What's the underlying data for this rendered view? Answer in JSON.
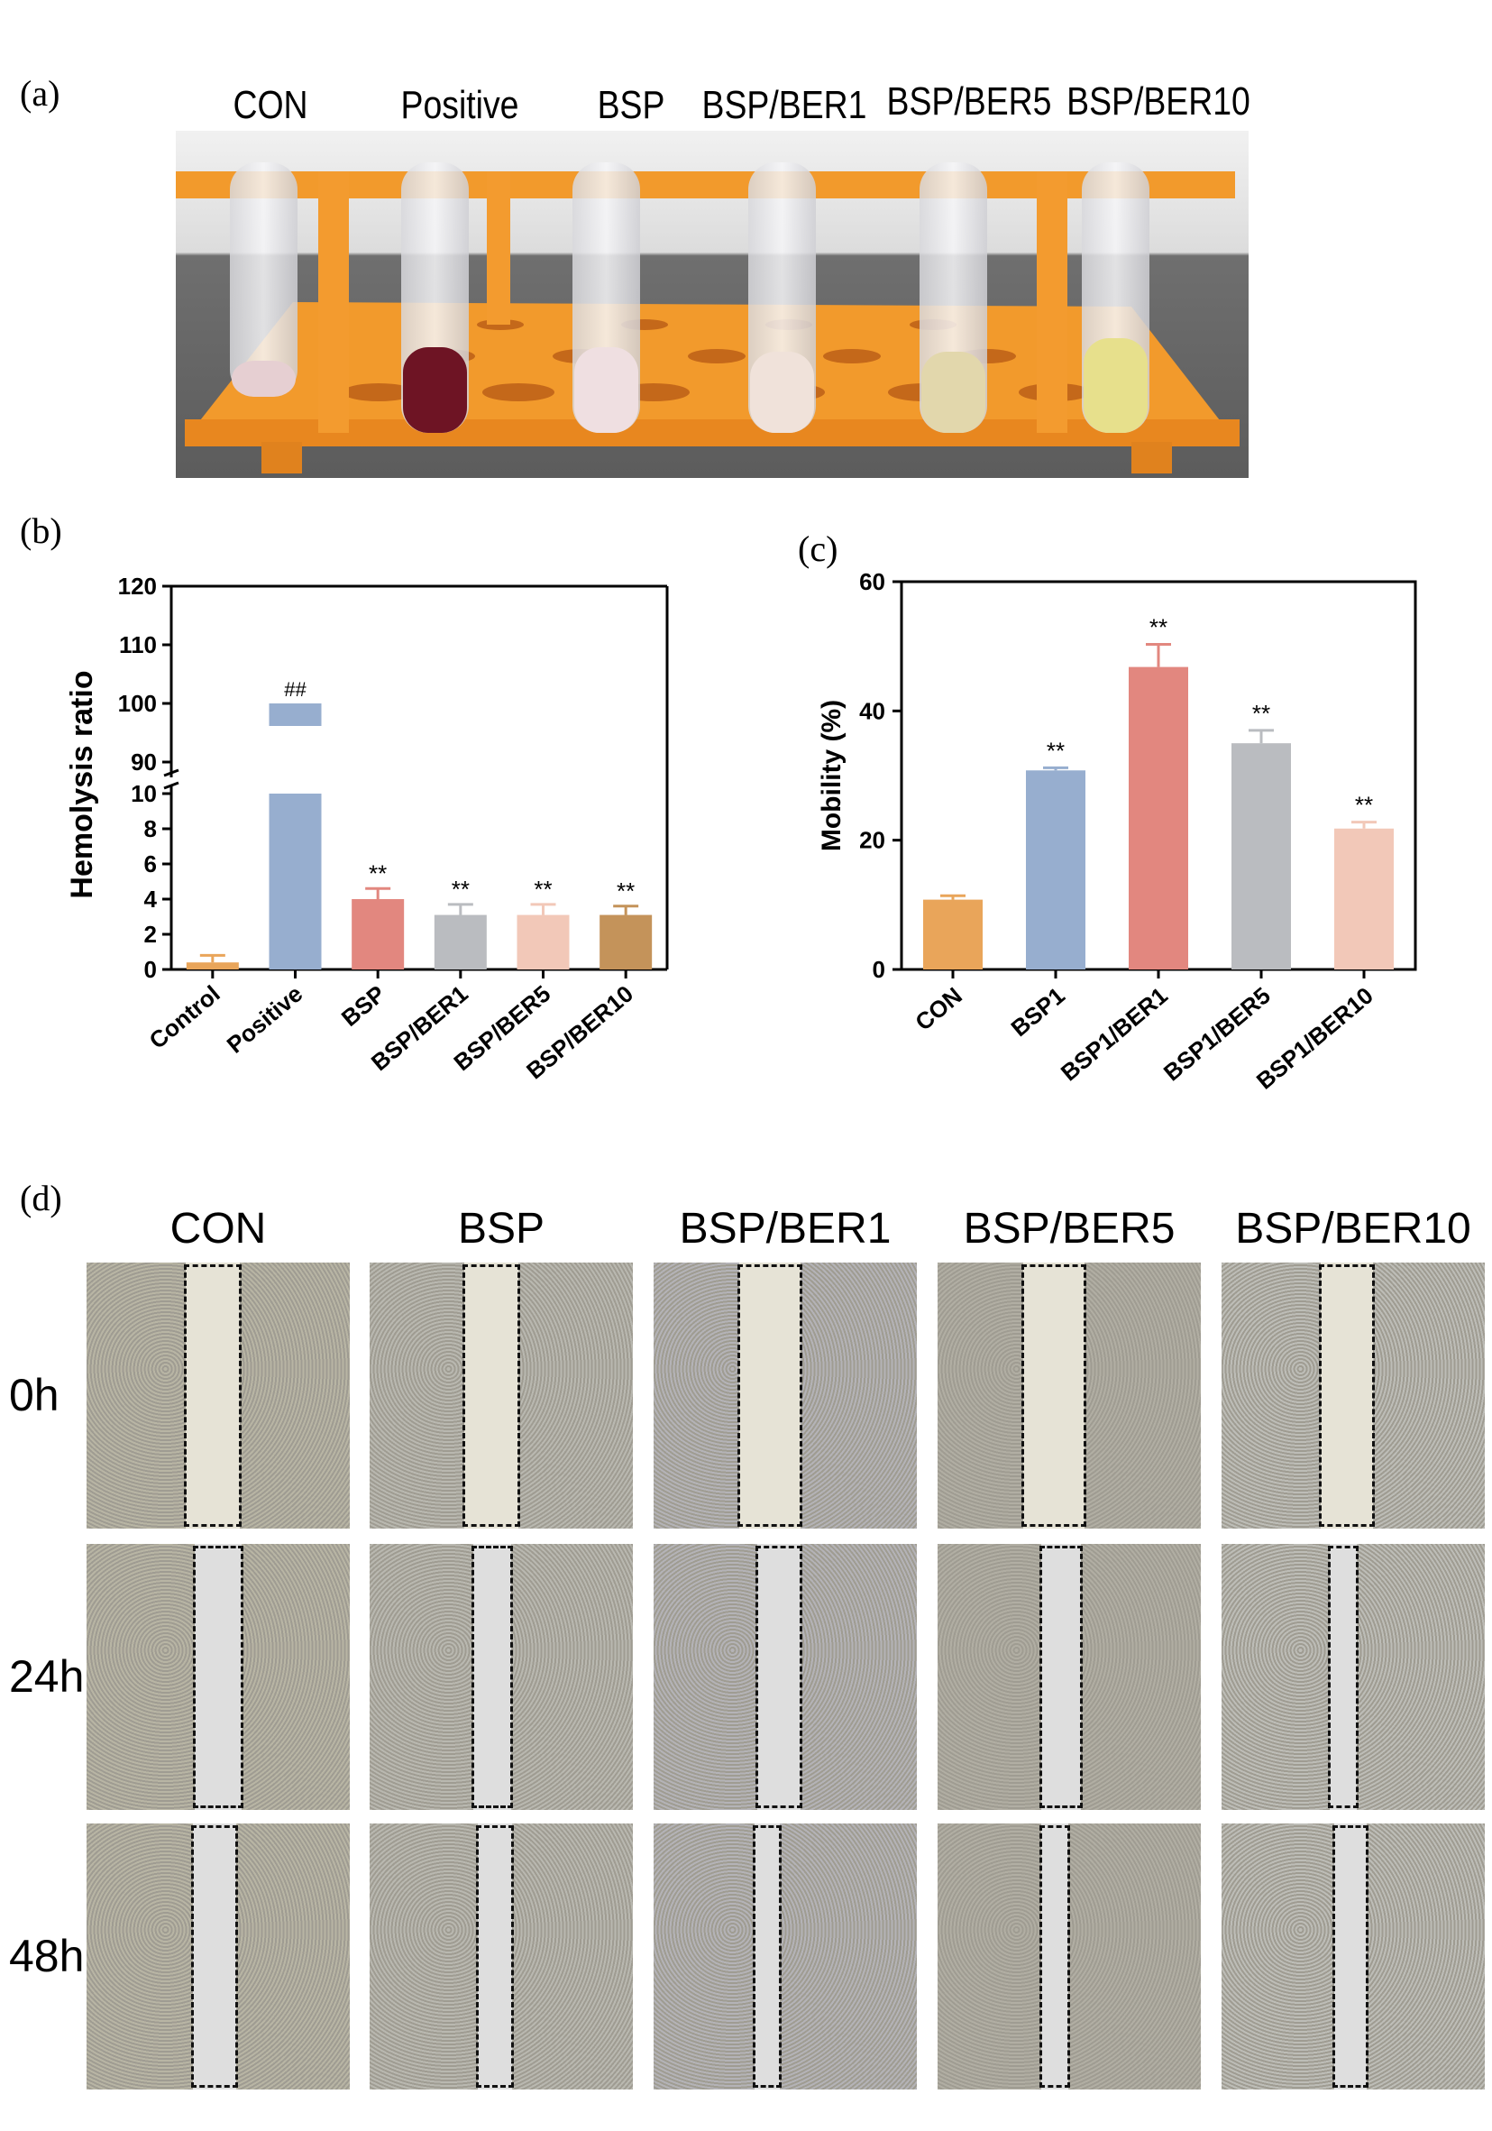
{
  "panels": {
    "a": {
      "label": "(a)",
      "tubes": [
        "CON",
        "Positive",
        "BSP",
        "BSP/BER1",
        "BSP/BER5",
        "BSP/BER10"
      ],
      "tube_colors": [
        "#e6cfd2",
        "#6e1424",
        "#efdfe1",
        "#f0e2da",
        "#e2d7ac",
        "#e7e08c"
      ]
    },
    "b": {
      "label": "(b)"
    },
    "c": {
      "label": "(c)"
    },
    "d": {
      "label": "(d)",
      "columns": [
        "CON",
        "BSP",
        "BSP/BER1",
        "BSP/BER5",
        "BSP/BER10"
      ],
      "rows": [
        "0h",
        "24h",
        "48h"
      ]
    }
  },
  "chart_data": [
    {
      "type": "bar",
      "panel": "b",
      "ylabel": "Hemolysis ratio",
      "categories": [
        "Control",
        "Positive",
        "BSP",
        "BSP/BER1",
        "BSP/BER5",
        "BSP/BER10"
      ],
      "values": [
        0.4,
        100,
        4.0,
        3.1,
        3.1,
        3.1
      ],
      "errors": [
        0.4,
        0,
        0.6,
        0.6,
        0.6,
        0.5
      ],
      "annotations": [
        "",
        "##",
        "**",
        "**",
        "**",
        "**"
      ],
      "colors": [
        "#e9a55a",
        "#97aecf",
        "#e2877f",
        "#babcc0",
        "#f2c8b8",
        "#c4935a"
      ],
      "broken_axis": true,
      "lower_ticks": [
        "0",
        "2",
        "4",
        "6",
        "8",
        "10"
      ],
      "upper_ticks": [
        "90",
        "100",
        "110",
        "120"
      ],
      "lower_range": [
        0,
        10
      ],
      "upper_range": [
        90,
        120
      ]
    },
    {
      "type": "bar",
      "panel": "c",
      "ylabel": "Mobility (%)",
      "categories": [
        "CON",
        "BSP1",
        "BSP1/BER1",
        "BSP1/BER5",
        "BSP1/BER10"
      ],
      "values": [
        10.8,
        30.8,
        46.8,
        35.0,
        21.8
      ],
      "errors": [
        0.6,
        0.4,
        3.5,
        2.0,
        1.0
      ],
      "annotations": [
        "",
        "**",
        "**",
        "**",
        "**"
      ],
      "colors": [
        "#e9a55a",
        "#97aecf",
        "#e2877f",
        "#babcc0",
        "#f2c8b8"
      ],
      "ylim": [
        0,
        60
      ],
      "ticks": [
        "0",
        "20",
        "40",
        "60"
      ]
    }
  ]
}
